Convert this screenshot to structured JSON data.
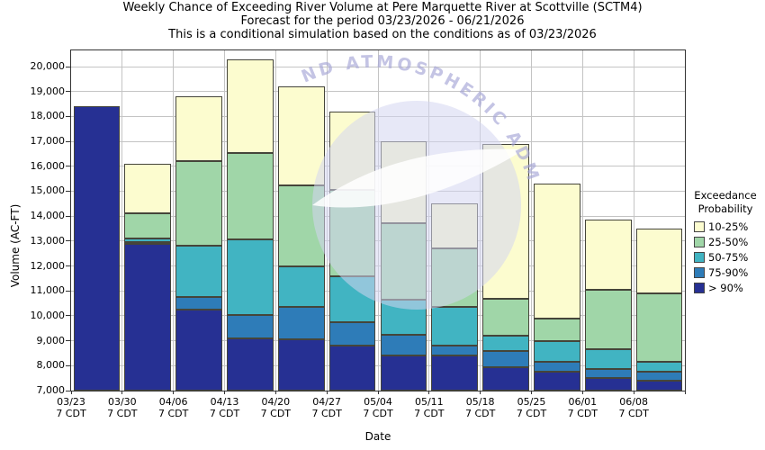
{
  "title": {
    "line1": "Weekly Chance of Exceeding River Volume at Pere Marquette River at Scottville (SCTM4)",
    "line2": "Forecast for the period 03/23/2026 - 06/21/2026",
    "line3": "This is a conditional simulation based on the conditions as of 03/23/2026"
  },
  "watermark": {
    "text": "ND ATMOSPHERIC ADM"
  },
  "legend": {
    "title_line1": "Exceedance",
    "title_line2": "Probability",
    "items": [
      {
        "label": "10-25%",
        "color": "#FCFCCF"
      },
      {
        "label": "25-50%",
        "color": "#A0D6A8"
      },
      {
        "label": "50-75%",
        "color": "#41B4C2"
      },
      {
        "label": "75-90%",
        "color": "#2E7CB8"
      },
      {
        "label": "> 90%",
        "color": "#263093"
      }
    ]
  },
  "chart_data": {
    "type": "bar",
    "stacked": true,
    "title": "Weekly Chance of Exceeding River Volume at Pere Marquette River at Scottville (SCTM4)",
    "subtitle": "Forecast for the period 03/23/2026 - 06/21/2026",
    "note": "This is a conditional simulation based on the conditions as of 03/23/2026",
    "xlabel": "Date",
    "ylabel": "Volume (AC-FT)",
    "units": "AC-FT",
    "ylim": [
      7000,
      20650
    ],
    "grid": true,
    "legend_position": "right",
    "yticks": [
      {
        "value": 7000,
        "label": "7,000"
      },
      {
        "value": 8000,
        "label": "8,000"
      },
      {
        "value": 9000,
        "label": "9,000"
      },
      {
        "value": 10000,
        "label": "10,000"
      },
      {
        "value": 11000,
        "label": "11,000"
      },
      {
        "value": 12000,
        "label": "12,000"
      },
      {
        "value": 13000,
        "label": "13,000"
      },
      {
        "value": 14000,
        "label": "14,000"
      },
      {
        "value": 15000,
        "label": "15,000"
      },
      {
        "value": 16000,
        "label": "16,000"
      },
      {
        "value": 17000,
        "label": "17,000"
      },
      {
        "value": 18000,
        "label": "18,000"
      },
      {
        "value": 19000,
        "label": "19,000"
      },
      {
        "value": 20000,
        "label": "20,000"
      }
    ],
    "colors": {
      "p10_25": "#FCFCCF",
      "p25_50": "#A0D6A8",
      "p50_75": "#41B4C2",
      "p75_90": "#2E7CB8",
      "gt90": "#263093"
    },
    "series_semantics": "levels are exceedance-probability thresholds in AC-FT; bar spans 7000 (axis bottom) to p10 (bar top)",
    "bars": [
      {
        "date": "03/23",
        "time": "7 CDT",
        "levels": {
          "p10": 18400,
          "p25": 18400,
          "p50": 18400,
          "p75": 18400,
          "p90": 18400
        }
      },
      {
        "date": "03/30",
        "time": "7 CDT",
        "levels": {
          "p10": 16100,
          "p25": 14100,
          "p50": 13100,
          "p75": 12950,
          "p90": 12870
        }
      },
      {
        "date": "04/06",
        "time": "7 CDT",
        "levels": {
          "p10": 18800,
          "p25": 16200,
          "p50": 12800,
          "p75": 10750,
          "p90": 10250
        }
      },
      {
        "date": "04/13",
        "time": "7 CDT",
        "levels": {
          "p10": 20300,
          "p25": 16550,
          "p50": 13050,
          "p75": 10050,
          "p90": 9100
        }
      },
      {
        "date": "04/20",
        "time": "7 CDT",
        "levels": {
          "p10": 19200,
          "p25": 15250,
          "p50": 12000,
          "p75": 10350,
          "p90": 9050
        }
      },
      {
        "date": "04/27",
        "time": "7 CDT",
        "levels": {
          "p10": 18200,
          "p25": 15050,
          "p50": 11600,
          "p75": 9750,
          "p90": 8800
        }
      },
      {
        "date": "05/04",
        "time": "7 CDT",
        "levels": {
          "p10": 17000,
          "p25": 13700,
          "p50": 10650,
          "p75": 9250,
          "p90": 8400
        }
      },
      {
        "date": "05/11",
        "time": "7 CDT",
        "levels": {
          "p10": 14500,
          "p25": 12700,
          "p50": 10350,
          "p75": 8800,
          "p90": 8400
        }
      },
      {
        "date": "05/18",
        "time": "7 CDT",
        "levels": {
          "p10": 16900,
          "p25": 10700,
          "p50": 9200,
          "p75": 8600,
          "p90": 7950
        }
      },
      {
        "date": "05/25",
        "time": "7 CDT",
        "levels": {
          "p10": 15300,
          "p25": 9900,
          "p50": 9000,
          "p75": 8150,
          "p90": 7750
        }
      },
      {
        "date": "06/01",
        "time": "7 CDT",
        "levels": {
          "p10": 13850,
          "p25": 11050,
          "p50": 8650,
          "p75": 7850,
          "p90": 7500
        }
      },
      {
        "date": "06/08",
        "time": "7 CDT",
        "levels": {
          "p10": 13500,
          "p25": 10900,
          "p50": 8150,
          "p75": 7750,
          "p90": 7400
        }
      }
    ]
  }
}
